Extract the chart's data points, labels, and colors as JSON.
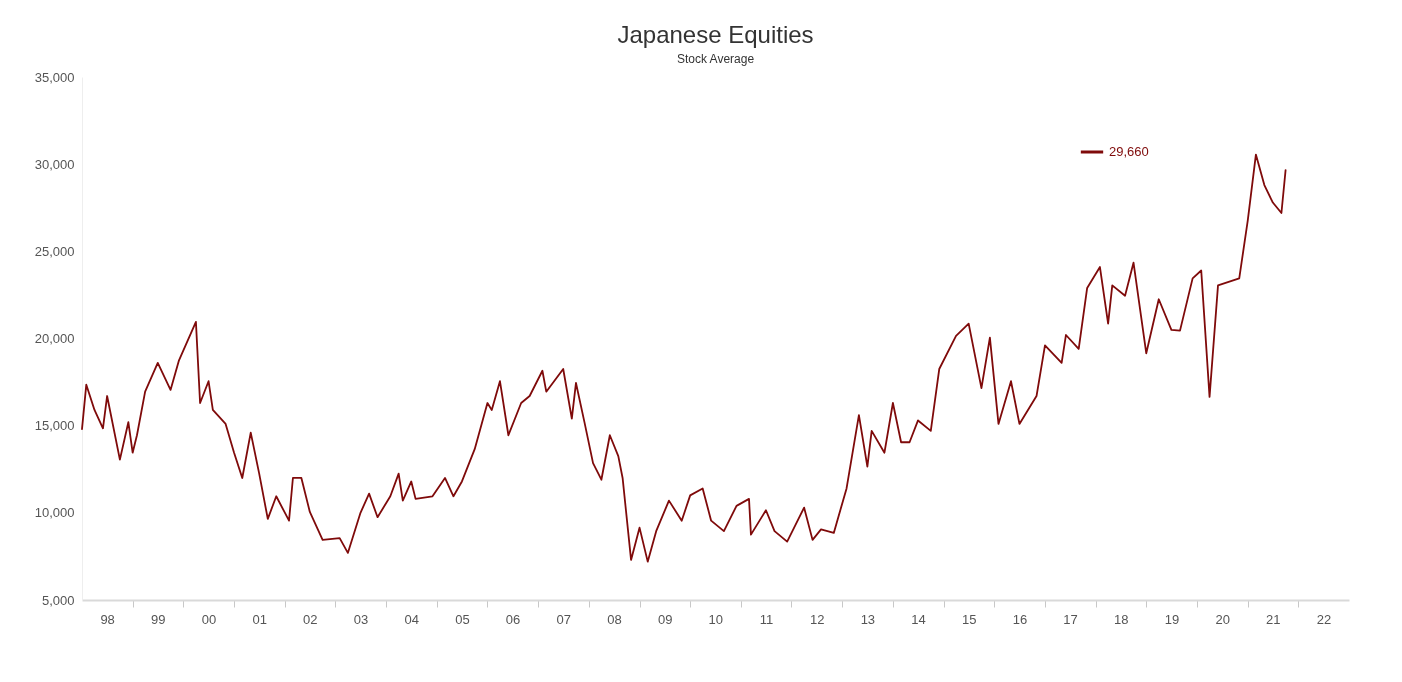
{
  "chart_data": {
    "type": "line",
    "title": "Japanese Equities",
    "subtitle": "Stock Average",
    "x": [
      "1998-01",
      "1998-02",
      "1998-04",
      "1998-06",
      "1998-07",
      "1998-10",
      "1998-12",
      "1999-01",
      "1999-02",
      "1999-04",
      "1999-07",
      "1999-10",
      "1999-12",
      "2000-04",
      "2000-05",
      "2000-07",
      "2000-08",
      "2000-11",
      "2001-01",
      "2001-03",
      "2001-05",
      "2001-07",
      "2001-09",
      "2001-11",
      "2002-02",
      "2002-03",
      "2002-05",
      "2002-07",
      "2002-10",
      "2003-02",
      "2003-04",
      "2003-07",
      "2003-09",
      "2003-11",
      "2004-02",
      "2004-04",
      "2004-05",
      "2004-07",
      "2004-08",
      "2004-12",
      "2005-03",
      "2005-05",
      "2005-07",
      "2005-10",
      "2006-01",
      "2006-02",
      "2006-04",
      "2006-06",
      "2006-09",
      "2006-11",
      "2007-02",
      "2007-03",
      "2007-07",
      "2007-09",
      "2007-10",
      "2007-12",
      "2008-02",
      "2008-04",
      "2008-06",
      "2008-08",
      "2008-09",
      "2008-11",
      "2009-01",
      "2009-03",
      "2009-05",
      "2009-08",
      "2009-11",
      "2010-01",
      "2010-04",
      "2010-06",
      "2010-09",
      "2010-12",
      "2011-03-01",
      "2011-03-15",
      "2011-07",
      "2011-09",
      "2011-12",
      "2012-04",
      "2012-06",
      "2012-08",
      "2012-11",
      "2013-02",
      "2013-05",
      "2013-07",
      "2013-08",
      "2013-11",
      "2014-01",
      "2014-03",
      "2014-05",
      "2014-07",
      "2014-10",
      "2014-12",
      "2015-04",
      "2015-07",
      "2015-10",
      "2015-12",
      "2016-02",
      "2016-05",
      "2016-07",
      "2016-11",
      "2017-01",
      "2017-05",
      "2017-06",
      "2017-09",
      "2017-11",
      "2018-02",
      "2018-04",
      "2018-05",
      "2018-08",
      "2018-10",
      "2019-01",
      "2019-04",
      "2019-07",
      "2019-09",
      "2019-12",
      "2020-02",
      "2020-04",
      "2020-06",
      "2020-11",
      "2021-01",
      "2021-03",
      "2021-05",
      "2021-07",
      "2021-09",
      "2021-10"
    ],
    "series": [
      {
        "name": "29,660",
        "color": "#7f0a0a",
        "values": [
          14800,
          17350,
          15900,
          14850,
          16700,
          13050,
          15200,
          13450,
          14450,
          16950,
          18600,
          17050,
          18750,
          20950,
          16300,
          17550,
          15900,
          15100,
          13450,
          12000,
          14600,
          12250,
          9650,
          10950,
          9550,
          12000,
          12000,
          10050,
          8450,
          8550,
          7700,
          10000,
          11100,
          9750,
          10950,
          12250,
          10700,
          11800,
          10800,
          10950,
          12000,
          10950,
          11800,
          13650,
          16300,
          15900,
          17550,
          14450,
          16300,
          16700,
          18150,
          16950,
          18250,
          15400,
          17450,
          15200,
          12850,
          11900,
          14450,
          13250,
          12000,
          7300,
          9150,
          7200,
          8950,
          10700,
          9550,
          11000,
          11400,
          9550,
          8950,
          10400,
          10800,
          8750,
          10150,
          8950,
          8350,
          10300,
          8450,
          9050,
          8850,
          11400,
          15600,
          12650,
          14700,
          13450,
          16300,
          14050,
          14050,
          15300,
          14700,
          18250,
          20150,
          20850,
          17150,
          20050,
          15100,
          17550,
          15100,
          16700,
          19600,
          18600,
          20200,
          19400,
          22900,
          24100,
          20850,
          23050,
          22450,
          24350,
          19150,
          22250,
          20500,
          20450,
          23450,
          23900,
          16650,
          23050,
          23450,
          26750,
          30550,
          28800,
          27800,
          27200,
          29660
        ]
      }
    ],
    "xlim": [
      "1998",
      "2023"
    ],
    "xticks": [
      {
        "value": "1998-07",
        "label": "98"
      },
      {
        "value": "1999",
        "label": null
      },
      {
        "value": "1999-07",
        "label": "99"
      },
      {
        "value": "2000",
        "label": null
      },
      {
        "value": "2000-07",
        "label": "00"
      },
      {
        "value": "2001",
        "label": null
      },
      {
        "value": "2001-07",
        "label": "01"
      },
      {
        "value": "2002",
        "label": null
      },
      {
        "value": "2002-07",
        "label": "02"
      },
      {
        "value": "2003",
        "label": null
      },
      {
        "value": "2003-07",
        "label": "03"
      },
      {
        "value": "2004",
        "label": null
      },
      {
        "value": "2004-07",
        "label": "04"
      },
      {
        "value": "2005",
        "label": null
      },
      {
        "value": "2005-07",
        "label": "05"
      },
      {
        "value": "2006",
        "label": null
      },
      {
        "value": "2006-07",
        "label": "06"
      },
      {
        "value": "2007",
        "label": null
      },
      {
        "value": "2007-07",
        "label": "07"
      },
      {
        "value": "2008",
        "label": null
      },
      {
        "value": "2008-07",
        "label": "08"
      },
      {
        "value": "2009",
        "label": null
      },
      {
        "value": "2009-07",
        "label": "09"
      },
      {
        "value": "2010",
        "label": null
      },
      {
        "value": "2010-07",
        "label": "10"
      },
      {
        "value": "2011",
        "label": null
      },
      {
        "value": "2011-07",
        "label": "11"
      },
      {
        "value": "2012",
        "label": null
      },
      {
        "value": "2012-07",
        "label": "12"
      },
      {
        "value": "2013",
        "label": null
      },
      {
        "value": "2013-07",
        "label": "13"
      },
      {
        "value": "2014",
        "label": null
      },
      {
        "value": "2014-07",
        "label": "14"
      },
      {
        "value": "2015",
        "label": null
      },
      {
        "value": "2015-07",
        "label": "15"
      },
      {
        "value": "2016",
        "label": null
      },
      {
        "value": "2016-07",
        "label": "16"
      },
      {
        "value": "2017",
        "label": null
      },
      {
        "value": "2017-07",
        "label": "17"
      },
      {
        "value": "2018",
        "label": null
      },
      {
        "value": "2018-07",
        "label": "18"
      },
      {
        "value": "2019",
        "label": null
      },
      {
        "value": "2019-07",
        "label": "19"
      },
      {
        "value": "2020",
        "label": null
      },
      {
        "value": "2020-07",
        "label": "20"
      },
      {
        "value": "2021",
        "label": null
      },
      {
        "value": "2021-07",
        "label": "21"
      },
      {
        "value": "2022",
        "label": null
      },
      {
        "value": "2022-07",
        "label": "22"
      }
    ],
    "ylim": [
      5000,
      35000
    ],
    "yticks": [
      {
        "value": 5000,
        "label": "5,000"
      },
      {
        "value": 10000,
        "label": "10,000"
      },
      {
        "value": 15000,
        "label": "15,000"
      },
      {
        "value": 20000,
        "label": "20,000"
      },
      {
        "value": 25000,
        "label": "25,000"
      },
      {
        "value": 30000,
        "label": "30,000"
      },
      {
        "value": 35000,
        "label": "35,000"
      }
    ],
    "grid": false,
    "legend": "top right",
    "line_style": "solid"
  }
}
